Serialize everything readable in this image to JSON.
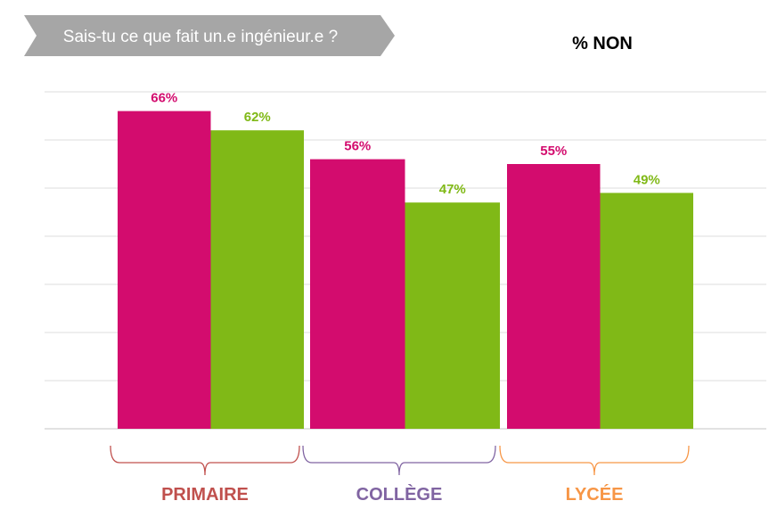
{
  "banner": {
    "text": "Sais-tu ce que fait un.e ingénieur.e ?",
    "color": "#a6a6a6"
  },
  "chart_data": {
    "type": "bar",
    "title": "% NON",
    "categories": [
      "PRIMAIRE",
      "COLLÈGE",
      "LYCÉE"
    ],
    "category_colors": [
      "#c0504d",
      "#8064a2",
      "#f79646"
    ],
    "series": [
      {
        "values": [
          66,
          56,
          55
        ],
        "labels": [
          "66%",
          "56%",
          "55%"
        ],
        "color": "#d30c6e"
      },
      {
        "values": [
          62,
          47,
          49
        ],
        "labels": [
          "62%",
          "47%",
          "49%"
        ],
        "color": "#80b917"
      }
    ],
    "ylim": [
      0,
      70
    ],
    "grid": true,
    "grid_step": 10,
    "legend": "none"
  }
}
